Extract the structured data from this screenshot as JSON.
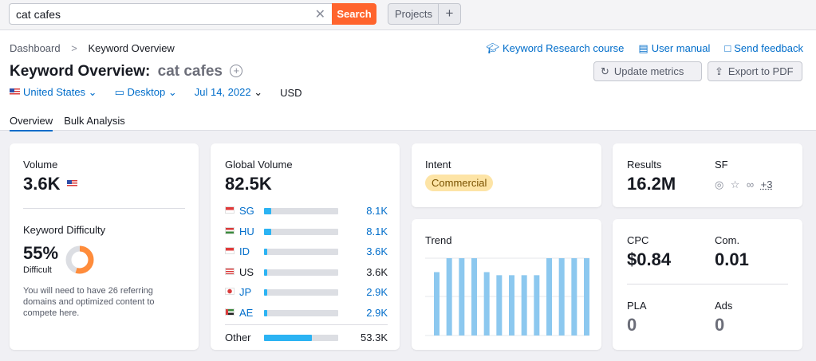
{
  "search": {
    "value": "cat cafes",
    "button": "Search",
    "clear_icon": "✕"
  },
  "projects": {
    "label": "Projects",
    "plus": "+"
  },
  "breadcrumb": {
    "root": "Dashboard",
    "sep": ">",
    "current": "Keyword Overview"
  },
  "links": {
    "course": "Keyword Research course",
    "manual": "User manual",
    "feedback": "Send feedback"
  },
  "title": {
    "prefix": "Keyword Overview:",
    "keyword": "cat cafes",
    "add_icon": "+"
  },
  "buttons": {
    "update": "Update metrics",
    "export": "Export to PDF"
  },
  "filters": {
    "country": "United States",
    "device": "Desktop",
    "date": "Jul 14, 2022",
    "currency": "USD"
  },
  "tabs": [
    "Overview",
    "Bulk Analysis"
  ],
  "volume": {
    "label": "Volume",
    "value": "3.6K"
  },
  "kd": {
    "label": "Keyword Difficulty",
    "value": "55%",
    "level": "Difficult",
    "percent": 55,
    "note": "You will need to have 26 referring domains and optimized content to compete here."
  },
  "global": {
    "label": "Global Volume",
    "value": "82.5K",
    "rows": [
      {
        "code": "SG",
        "value": "8.1K",
        "fill": 0.1,
        "link": true
      },
      {
        "code": "HU",
        "value": "8.1K",
        "fill": 0.1,
        "link": true
      },
      {
        "code": "ID",
        "value": "3.6K",
        "fill": 0.04,
        "link": true
      },
      {
        "code": "US",
        "value": "3.6K",
        "fill": 0.04,
        "link": false
      },
      {
        "code": "JP",
        "value": "2.9K",
        "fill": 0.035,
        "link": true
      },
      {
        "code": "AE",
        "value": "2.9K",
        "fill": 0.035,
        "link": true
      }
    ],
    "other": {
      "label": "Other",
      "value": "53.3K",
      "fill": 0.65
    }
  },
  "intent": {
    "label": "Intent",
    "value": "Commercial"
  },
  "trend": {
    "label": "Trend",
    "values": [
      0.82,
      1,
      1,
      1,
      0.82,
      0.78,
      0.78,
      0.78,
      0.78,
      1,
      1,
      1,
      1
    ]
  },
  "results": {
    "label": "Results",
    "value": "16.2M",
    "sf_label": "SF",
    "sf_more": "+3"
  },
  "cpc": {
    "label": "CPC",
    "value": "$0.84",
    "com_label": "Com.",
    "com_value": "0.01",
    "pla_label": "PLA",
    "pla_value": "0",
    "ads_label": "Ads",
    "ads_value": "0"
  },
  "colors": {
    "accent": "#ff642d",
    "link": "#006dca",
    "bar": "#2bb3f3",
    "trend": "#8cc8ef",
    "donut": "#ff8c3b"
  }
}
